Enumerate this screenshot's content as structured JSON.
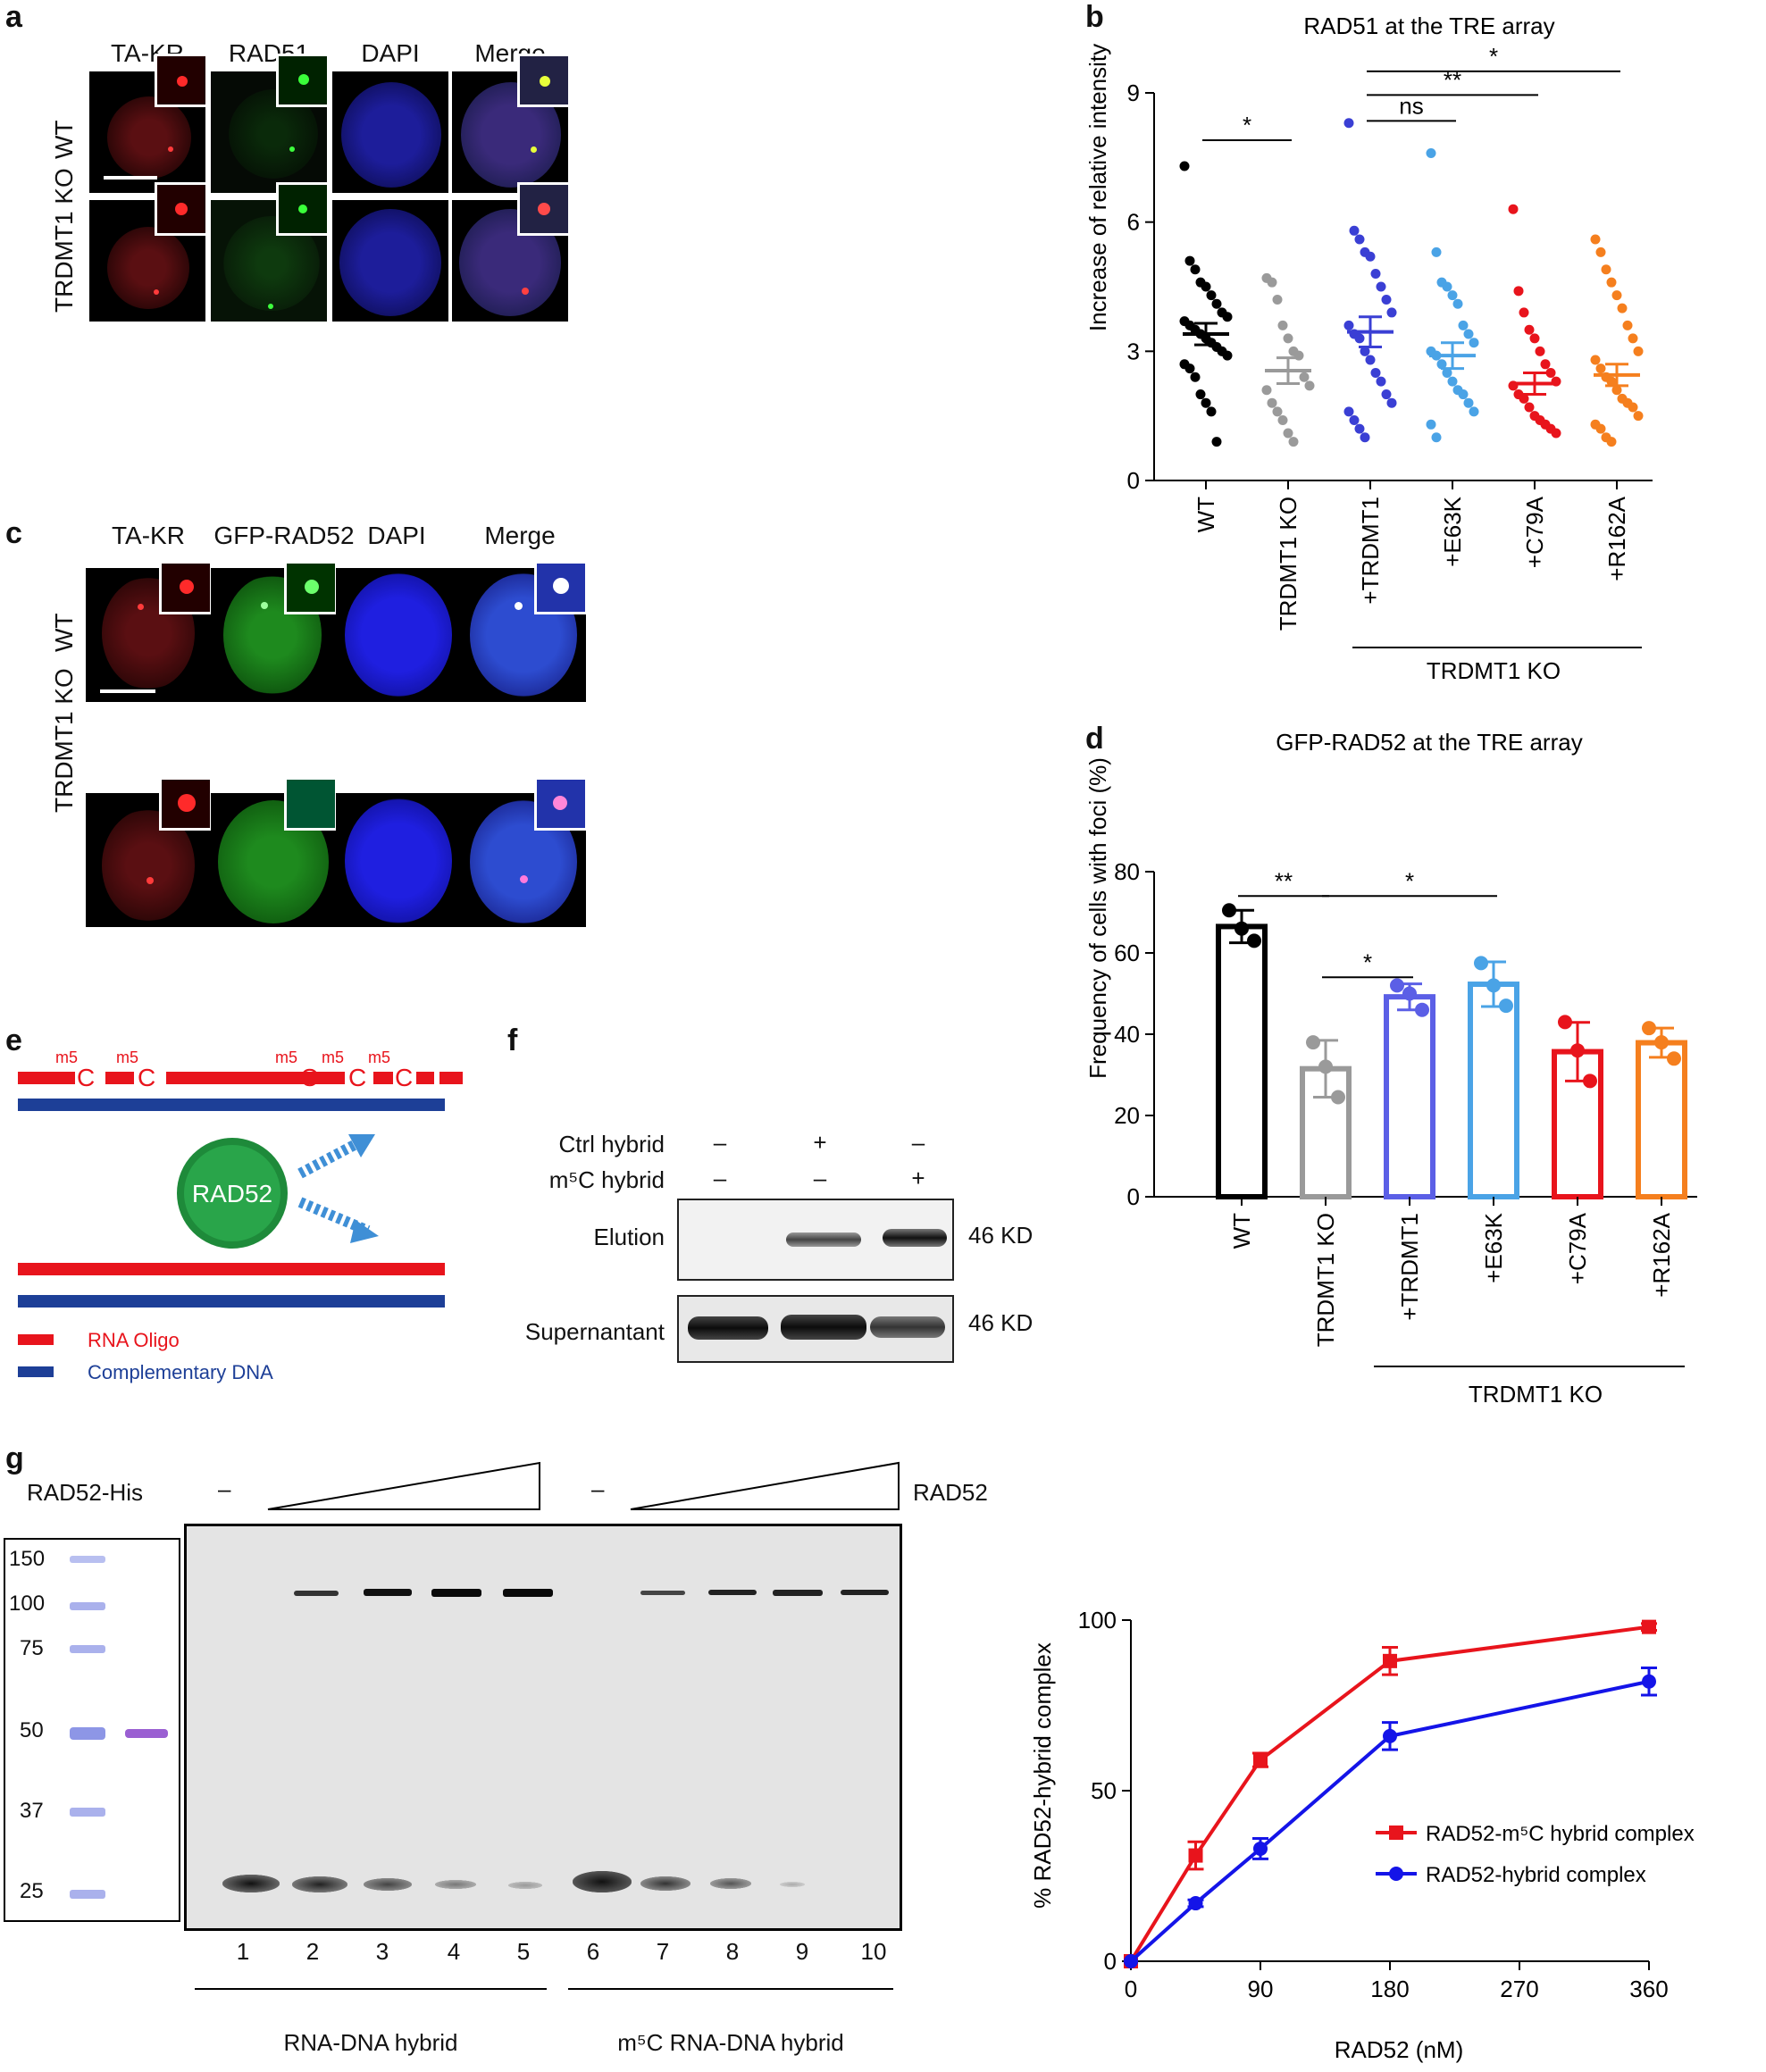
{
  "panels": {
    "a": {
      "letter": "a",
      "columns": [
        "TA-KR",
        "RAD51",
        "DAPI",
        "Merge"
      ],
      "rows": [
        "WT",
        "TRDMT1 KO"
      ]
    },
    "b": {
      "letter": "b"
    },
    "c": {
      "letter": "c",
      "columns": [
        "TA-KR",
        "GFP-RAD52",
        "DAPI",
        "Merge"
      ],
      "rows": [
        "WT",
        "TRDMT1 KO"
      ]
    },
    "d": {
      "letter": "d"
    },
    "e": {
      "letter": "e",
      "mod_label": "m5",
      "base_label": "C",
      "protein": "RAD52",
      "legend_rna": "RNA Oligo",
      "legend_dna": "Complementary DNA",
      "colors": {
        "rna": "#e8141c",
        "dna": "#1d3f97",
        "protein": "#1e8a3a"
      }
    },
    "f": {
      "letter": "f",
      "row1_label": "Ctrl hybrid",
      "row1_values": [
        "–",
        "+",
        "–"
      ],
      "row2_label": "m⁵C hybrid",
      "row2_values": [
        "–",
        "–",
        "+"
      ],
      "blots": [
        {
          "label": "Elution",
          "size": "46 KD"
        },
        {
          "label": "Supernantant",
          "size": "46 KD"
        }
      ]
    },
    "g": {
      "letter": "g",
      "left_header": "RAD52-His",
      "minus": "–",
      "right_header": "RAD52",
      "ladder": [
        "150",
        "100",
        "75",
        "50",
        "37",
        "25"
      ],
      "lanes": [
        "1",
        "2",
        "3",
        "4",
        "5",
        "6",
        "7",
        "8",
        "9",
        "10"
      ],
      "group1": "RNA-DNA hybrid",
      "group2": "m⁵C RNA-DNA hybrid"
    }
  },
  "chart_data": [
    {
      "id": "b",
      "type": "scatter",
      "title": "RAD51 at the TRE array",
      "ylabel": "Increase of relative intensity",
      "ylim": [
        0,
        9
      ],
      "yticks": [
        0,
        3,
        6,
        9
      ],
      "categories": [
        "WT",
        "TRDMT1 KO",
        "+TRDMT1",
        "+E63K",
        "+C79A",
        "+R162A"
      ],
      "group_label": "TRDMT1 KO",
      "colors": [
        "#000000",
        "#9a9a9a",
        "#3a3fd4",
        "#4aa3e6",
        "#e8141c",
        "#f57f1e"
      ],
      "means": [
        3.4,
        2.55,
        3.45,
        2.9,
        2.25,
        2.45
      ],
      "sems": [
        0.25,
        0.3,
        0.35,
        0.3,
        0.25,
        0.25
      ],
      "points": [
        [
          7.3,
          5.1,
          4.9,
          4.6,
          4.5,
          4.3,
          4.1,
          3.9,
          3.8,
          3.7,
          3.6,
          3.5,
          3.4,
          3.3,
          3.2,
          3.1,
          3.0,
          2.9,
          2.7,
          2.6,
          2.4,
          2.0,
          1.8,
          1.6,
          0.9
        ],
        [
          4.7,
          4.6,
          4.2,
          3.6,
          3.3,
          3.0,
          2.9,
          2.4,
          2.2,
          2.1,
          1.8,
          1.6,
          1.4,
          1.1,
          0.9
        ],
        [
          8.3,
          5.8,
          5.6,
          5.3,
          5.2,
          4.8,
          4.5,
          4.2,
          3.9,
          3.6,
          3.4,
          3.3,
          3.0,
          2.8,
          2.5,
          2.3,
          2.0,
          1.8,
          1.6,
          1.4,
          1.2,
          1.0
        ],
        [
          7.6,
          5.3,
          4.6,
          4.5,
          4.3,
          4.1,
          3.6,
          3.4,
          3.2,
          3.0,
          2.9,
          2.7,
          2.5,
          2.3,
          2.1,
          2.0,
          1.8,
          1.6,
          1.3,
          1.0
        ],
        [
          6.3,
          4.4,
          3.9,
          3.5,
          3.3,
          3.0,
          2.7,
          2.5,
          2.3,
          2.2,
          2.0,
          1.9,
          1.7,
          1.5,
          1.4,
          1.3,
          1.2,
          1.1
        ],
        [
          5.6,
          5.3,
          4.9,
          4.6,
          4.3,
          4.0,
          3.6,
          3.3,
          3.0,
          2.8,
          2.6,
          2.4,
          2.3,
          2.1,
          1.9,
          1.8,
          1.7,
          1.5,
          1.3,
          1.2,
          1.0,
          0.9
        ]
      ],
      "significance": [
        {
          "from": 0,
          "to": 1,
          "label": "*",
          "y": 7.9
        },
        {
          "from": 2,
          "to": 3,
          "label": "ns",
          "y": 8.35
        },
        {
          "from": 2,
          "to": 4,
          "label": "**",
          "y": 8.95
        },
        {
          "from": 2,
          "to": 5,
          "label": "*",
          "y": 9.5
        }
      ]
    },
    {
      "id": "d",
      "type": "bar",
      "title": "GFP-RAD52 at the TRE array",
      "ylabel": "Frequency of cells with foci (%)",
      "ylim": [
        0,
        80
      ],
      "yticks": [
        0,
        20,
        40,
        60,
        80
      ],
      "categories": [
        "WT",
        "TRDMT1 KO",
        "+TRDMT1",
        "+E63K",
        "+C79A",
        "+R162A"
      ],
      "group_label": "TRDMT1 KO",
      "colors": [
        "#000000",
        "#9a9a9a",
        "#5b5fe6",
        "#4aa3e6",
        "#e8141c",
        "#f57f1e"
      ],
      "values": [
        66.5,
        31.5,
        49.2,
        52.3,
        35.7,
        37.9
      ],
      "errors": [
        4,
        7,
        3.2,
        5.5,
        7.2,
        3.6
      ],
      "points": [
        [
          70.5,
          66,
          63
        ],
        [
          38,
          32,
          24.5
        ],
        [
          52,
          50,
          46
        ],
        [
          57.5,
          52,
          47
        ],
        [
          43,
          36,
          28.5
        ],
        [
          41.5,
          38,
          34
        ]
      ],
      "significance": [
        {
          "from": 0,
          "to": 1,
          "label": "**",
          "y": 74
        },
        {
          "from": 1,
          "to": 3,
          "label": "*",
          "y": 74
        },
        {
          "from": 1,
          "to": 2,
          "label": "*",
          "y": 54
        }
      ]
    },
    {
      "id": "g-right",
      "type": "line",
      "xlabel": "RAD52 (nM)",
      "ylabel": "% RAD52-hybrid complex",
      "xlim": [
        0,
        360
      ],
      "ylim": [
        0,
        100
      ],
      "xticks": [
        0,
        90,
        180,
        270,
        360
      ],
      "yticks": [
        0,
        50,
        100
      ],
      "series": [
        {
          "name": "RAD52-m⁵C hybrid complex",
          "color": "#e8141c",
          "marker": "square",
          "x": [
            0,
            45,
            90,
            180,
            360
          ],
          "y": [
            0,
            31,
            59,
            88,
            98
          ],
          "err": [
            0,
            4,
            2,
            4,
            1
          ]
        },
        {
          "name": "RAD52-hybrid complex",
          "color": "#1414e8",
          "marker": "circle",
          "x": [
            0,
            45,
            90,
            180,
            360
          ],
          "y": [
            0,
            17,
            33,
            66,
            82
          ],
          "err": [
            0,
            1,
            3,
            4,
            4
          ]
        }
      ]
    }
  ]
}
